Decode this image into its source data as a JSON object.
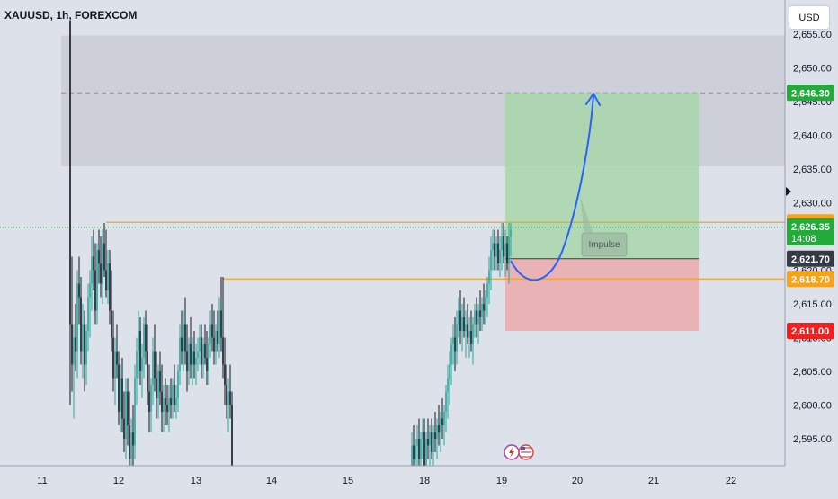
{
  "header": {
    "symbol": "XAUUSD, 1h, FOREXCOM",
    "currency": "USD"
  },
  "chart_data": {
    "type": "candlestick",
    "ylim": [
      2591.6,
      2656.6
    ],
    "y_ticks": [
      2595,
      2600,
      2605,
      2610,
      2615,
      2620,
      2625,
      2630,
      2635,
      2640,
      2645,
      2650,
      2655
    ],
    "x_ticks": [
      "11",
      "12",
      "13",
      "14",
      "15",
      "18",
      "19",
      "20",
      "21",
      "22"
    ],
    "badges": {
      "target": "2,646.30",
      "current_price": "2,626.35",
      "countdown": "14:08",
      "entry": "2,621.70",
      "support": "2,618.70",
      "stop": "2,611.00",
      "hidden_orange": "2,627.10"
    },
    "levels": {
      "target": 2646.3,
      "current": 2626.35,
      "entry": 2621.7,
      "support": 2618.7,
      "stop": 2611.0,
      "resistance": 2627.1,
      "supply_zone": [
        2635.4,
        2654.8
      ]
    },
    "annotation": "Impulse",
    "colors": {
      "up": "#26a69a",
      "down": "#131722",
      "target_zone": "#a5d6a7",
      "stop_zone": "#ef9a9a",
      "supply_zone": "#c7cad3",
      "orange_line": "#f7a21b",
      "projection": "#2962ff",
      "target_badge": "#22ab3a",
      "entry_badge": "#363a45",
      "stop_badge": "#f21f1f",
      "current_badge": "#22ab3a"
    }
  }
}
